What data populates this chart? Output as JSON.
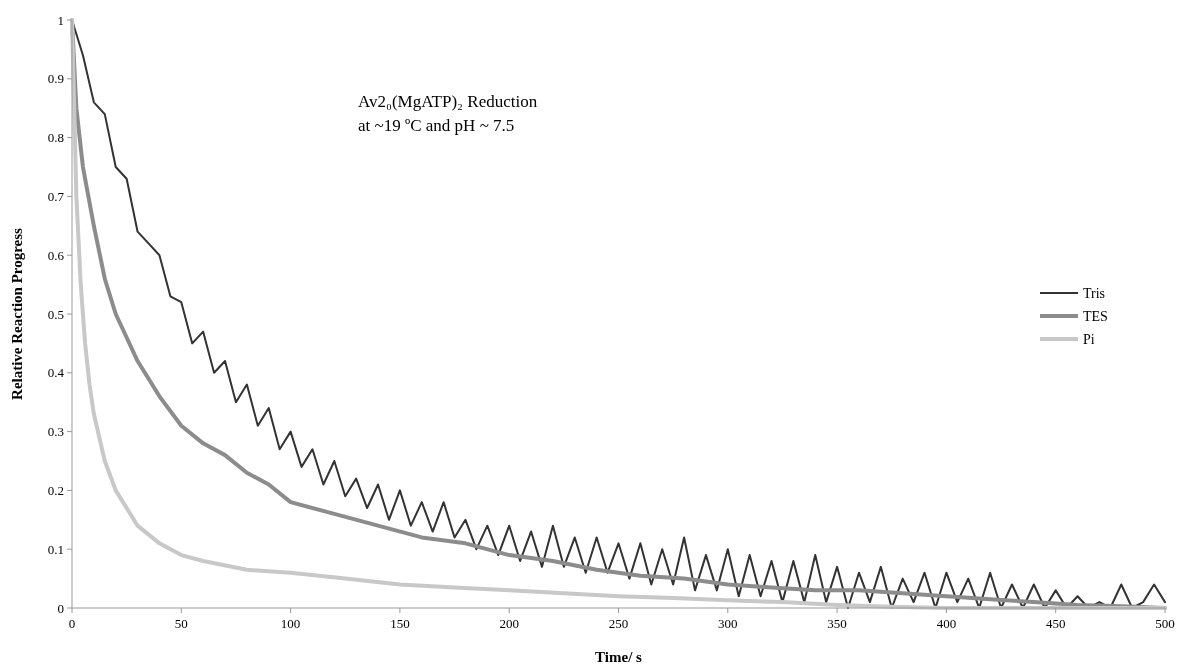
{
  "chart_data": {
    "type": "line",
    "xlabel": "Time/ s",
    "ylabel": "Relative Reaction Progress",
    "annotations": [
      "Av2₀(MgATP)₂ Reduction",
      "at ~19 ºC and pH ~ 7.5"
    ],
    "xlim": [
      0,
      500
    ],
    "xticks": [
      0,
      50,
      100,
      150,
      200,
      250,
      300,
      350,
      400,
      450,
      500
    ],
    "ylim": [
      0,
      1
    ],
    "yticks": [
      0,
      0.1,
      0.2,
      0.3,
      0.4,
      0.5,
      0.6,
      0.7,
      0.8,
      0.9,
      1
    ],
    "grid": false,
    "legend": "right",
    "line_style": "solid",
    "series": [
      {
        "name": "Tris",
        "color": "#333333",
        "x": [
          0,
          5,
          10,
          15,
          20,
          25,
          30,
          35,
          40,
          45,
          50,
          55,
          60,
          65,
          70,
          75,
          80,
          85,
          90,
          95,
          100,
          105,
          110,
          115,
          120,
          125,
          130,
          135,
          140,
          145,
          150,
          155,
          160,
          165,
          170,
          175,
          180,
          185,
          190,
          195,
          200,
          205,
          210,
          215,
          220,
          225,
          230,
          235,
          240,
          245,
          250,
          255,
          260,
          265,
          270,
          275,
          280,
          285,
          290,
          295,
          300,
          305,
          310,
          315,
          320,
          325,
          330,
          335,
          340,
          345,
          350,
          355,
          360,
          365,
          370,
          375,
          380,
          385,
          390,
          395,
          400,
          405,
          410,
          415,
          420,
          425,
          430,
          435,
          440,
          445,
          450,
          455,
          460,
          465,
          470,
          475,
          480,
          485,
          490,
          495,
          500
        ],
        "values": [
          1.0,
          0.94,
          0.86,
          0.84,
          0.75,
          0.73,
          0.64,
          0.62,
          0.6,
          0.53,
          0.52,
          0.45,
          0.47,
          0.4,
          0.42,
          0.35,
          0.38,
          0.31,
          0.34,
          0.27,
          0.3,
          0.24,
          0.27,
          0.21,
          0.25,
          0.19,
          0.22,
          0.17,
          0.21,
          0.15,
          0.2,
          0.14,
          0.18,
          0.13,
          0.18,
          0.12,
          0.15,
          0.1,
          0.14,
          0.09,
          0.14,
          0.08,
          0.13,
          0.07,
          0.14,
          0.07,
          0.12,
          0.06,
          0.12,
          0.06,
          0.11,
          0.05,
          0.11,
          0.04,
          0.1,
          0.04,
          0.12,
          0.03,
          0.09,
          0.03,
          0.1,
          0.02,
          0.09,
          0.02,
          0.08,
          0.01,
          0.08,
          0.01,
          0.09,
          0.01,
          0.07,
          0.0,
          0.06,
          0.01,
          0.07,
          0.0,
          0.05,
          0.01,
          0.06,
          0.0,
          0.06,
          0.01,
          0.05,
          0.0,
          0.06,
          0.0,
          0.04,
          0.0,
          0.04,
          0.0,
          0.03,
          0.0,
          0.02,
          0.0,
          0.01,
          0.0,
          0.04,
          0.0,
          0.01,
          0.04,
          0.01
        ]
      },
      {
        "name": "TES",
        "color": "#8c8c8c",
        "x": [
          0,
          2,
          5,
          10,
          15,
          20,
          25,
          30,
          40,
          50,
          60,
          70,
          80,
          90,
          100,
          120,
          140,
          160,
          180,
          200,
          220,
          240,
          260,
          280,
          300,
          320,
          340,
          360,
          380,
          400,
          420,
          440,
          460,
          480,
          500
        ],
        "values": [
          1.0,
          0.85,
          0.75,
          0.65,
          0.56,
          0.5,
          0.46,
          0.42,
          0.36,
          0.31,
          0.28,
          0.26,
          0.23,
          0.21,
          0.18,
          0.16,
          0.14,
          0.12,
          0.11,
          0.09,
          0.08,
          0.065,
          0.055,
          0.05,
          0.04,
          0.035,
          0.03,
          0.03,
          0.025,
          0.02,
          0.015,
          0.01,
          0.005,
          0.003,
          0.0
        ]
      },
      {
        "name": "Pi",
        "color": "#c8c8c8",
        "x": [
          0,
          2,
          4,
          6,
          8,
          10,
          15,
          20,
          25,
          30,
          40,
          50,
          60,
          80,
          100,
          125,
          150,
          175,
          200,
          225,
          250,
          275,
          300,
          325,
          350,
          375,
          400,
          450,
          500
        ],
        "values": [
          1.0,
          0.7,
          0.55,
          0.45,
          0.38,
          0.33,
          0.25,
          0.2,
          0.17,
          0.14,
          0.11,
          0.09,
          0.08,
          0.065,
          0.06,
          0.05,
          0.04,
          0.035,
          0.03,
          0.025,
          0.02,
          0.017,
          0.013,
          0.01,
          0.005,
          0.002,
          0.0,
          0.0,
          0.0
        ]
      }
    ]
  }
}
